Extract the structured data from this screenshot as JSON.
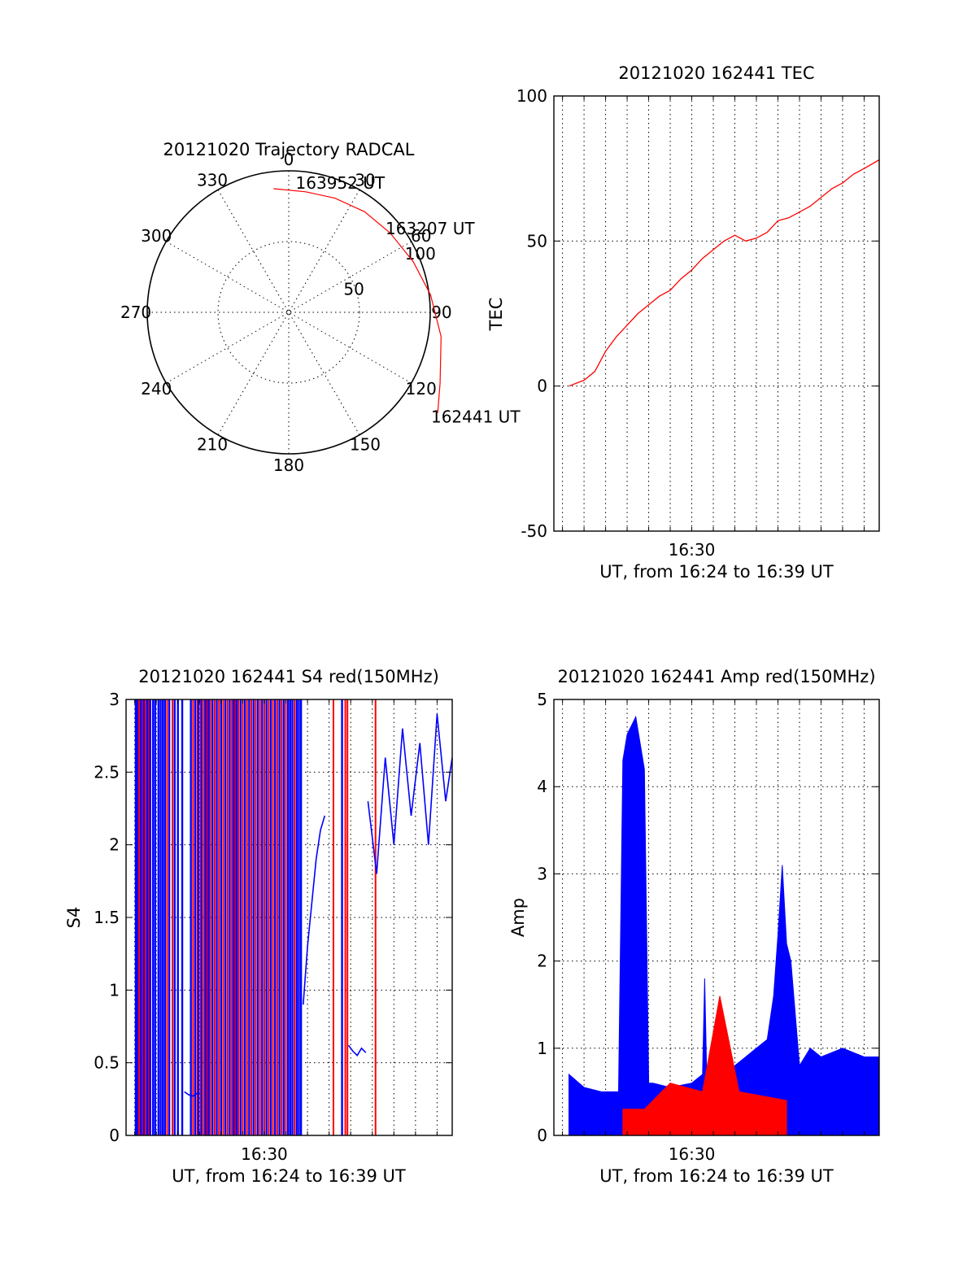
{
  "colors": {
    "red": "#ff0000",
    "blue": "#0000ff",
    "axis": "#000000",
    "background": "#ffffff"
  },
  "chart_data": [
    {
      "type": "polar",
      "title": "20121020 Trajectory RADCAL",
      "angle_labels": [
        "0",
        "30",
        "60",
        "90",
        "120",
        "150",
        "180",
        "210",
        "240",
        "270",
        "300",
        "330"
      ],
      "radial_ticks": [
        50,
        100
      ],
      "radial_range": [
        0,
        100
      ],
      "grid": true,
      "trajectory": {
        "color": "red",
        "points": [
          {
            "azimuth": 353,
            "zenith": 88
          },
          {
            "azimuth": 8,
            "zenith": 86
          },
          {
            "azimuth": 22,
            "zenith": 87
          },
          {
            "azimuth": 37,
            "zenith": 89
          },
          {
            "azimuth": 52,
            "zenith": 91
          },
          {
            "azimuth": 68,
            "zenith": 95
          },
          {
            "azimuth": 83,
            "zenith": 101
          },
          {
            "azimuth": 99,
            "zenith": 109
          },
          {
            "azimuth": 115,
            "zenith": 118
          },
          {
            "azimuth": 124,
            "zenith": 127
          }
        ]
      },
      "time_labels": [
        {
          "text": "163952 UT",
          "azimuth": 8,
          "zenith": 93
        },
        {
          "text": "163207 UT",
          "azimuth": 52,
          "zenith": 97
        },
        {
          "text": "162441 UT",
          "azimuth": 124,
          "zenith": 131
        }
      ]
    },
    {
      "type": "line",
      "title": "20121020 162441 TEC",
      "xlabel": "UT, from 16:24 to 16:39 UT",
      "ylabel": "TEC",
      "xrange_minutes": [
        23.6,
        38.7
      ],
      "ylim": [
        -50,
        100
      ],
      "yticks": [
        -50,
        0,
        50,
        100
      ],
      "xticks": [
        {
          "value": 30,
          "label": "16:30"
        }
      ],
      "grid": true,
      "series": [
        {
          "color": "red",
          "x": [
            24.3,
            25.0,
            25.5,
            26.0,
            26.5,
            27.0,
            27.5,
            28.0,
            28.5,
            29.0,
            29.5,
            30.0,
            30.5,
            31.0,
            31.5,
            32.0,
            32.5,
            33.0,
            33.5,
            34.0,
            34.5,
            35.0,
            35.5,
            36.0,
            36.5,
            37.0,
            37.5,
            38.0,
            38.7
          ],
          "y": [
            0,
            2,
            5,
            12,
            17,
            21,
            25,
            28,
            31,
            33,
            37,
            40,
            44,
            47,
            50,
            52,
            50,
            51,
            53,
            57,
            58,
            60,
            62,
            65,
            68,
            70,
            73,
            75,
            78
          ]
        }
      ]
    },
    {
      "type": "line",
      "title": "20121020 162441 S4 red(150MHz)",
      "xlabel": "UT, from 16:24 to 16:39 UT",
      "ylabel": "S4",
      "xrange_minutes": [
        23.6,
        38.7
      ],
      "ylim": [
        0,
        3
      ],
      "yticks": [
        0,
        0.5,
        1,
        1.5,
        2,
        2.5,
        3
      ],
      "xticks": [
        {
          "value": 30,
          "label": "16:30"
        }
      ],
      "grid": true,
      "red_spikes": [
        24.2,
        24.35,
        24.5,
        24.65,
        25.5,
        25.75,
        26.7,
        26.9,
        27.05,
        27.2,
        27.35,
        27.5,
        27.7,
        27.9,
        28.1,
        28.3,
        28.5,
        28.65,
        28.8,
        29.0,
        29.2,
        29.4,
        29.6,
        29.8,
        30.0,
        30.2,
        30.4,
        30.6,
        30.8,
        31.0,
        31.4,
        33.2,
        33.75,
        33.85,
        35.15
      ],
      "blue_spikes": [
        24.05,
        24.12,
        24.28,
        24.42,
        24.58,
        24.72,
        24.85,
        24.95,
        25.1,
        25.2,
        25.3,
        25.4,
        25.6,
        25.85,
        26.0,
        26.2,
        26.6,
        26.8,
        26.95,
        27.1,
        27.28,
        27.42,
        27.6,
        27.8,
        28.0,
        28.2,
        28.4,
        28.58,
        28.72,
        28.9,
        29.1,
        29.3,
        29.5,
        29.7,
        29.9,
        30.1,
        30.3,
        30.5,
        30.7,
        30.9,
        31.1,
        31.2,
        31.3,
        31.5,
        31.6,
        31.7,
        33.6
      ],
      "series": [
        {
          "name": "",
          "color": "blue",
          "x": [
            26.3,
            26.5,
            26.7,
            26.9,
            27.0
          ],
          "y": [
            0.3,
            0.28,
            0.27,
            0.29,
            0.3
          ]
        },
        {
          "name": "",
          "color": "blue",
          "x": [
            33.9,
            34.1,
            34.3,
            34.5,
            34.7
          ],
          "y": [
            0.62,
            0.58,
            0.55,
            0.6,
            0.57
          ]
        },
        {
          "name": "",
          "color": "blue",
          "x": [
            31.8,
            32.0,
            32.2,
            32.4,
            32.6,
            32.8
          ],
          "y": [
            0.9,
            1.3,
            1.6,
            1.9,
            2.1,
            2.2
          ]
        },
        {
          "name": "",
          "color": "blue",
          "x": [
            34.8,
            35.2,
            35.6,
            36.0,
            36.4,
            36.8,
            37.2,
            37.6,
            38.0,
            38.4,
            38.7
          ],
          "y": [
            2.3,
            1.8,
            2.6,
            2.0,
            2.8,
            2.2,
            2.7,
            2.0,
            2.9,
            2.3,
            2.6
          ]
        }
      ]
    },
    {
      "type": "line",
      "title": "20121020 162441 Amp red(150MHz)",
      "xlabel": "UT, from 16:24 to 16:39 UT",
      "ylabel": "Amp",
      "xrange_minutes": [
        23.6,
        38.7
      ],
      "ylim": [
        0,
        5
      ],
      "yticks": [
        0,
        1,
        2,
        3,
        4,
        5
      ],
      "xticks": [
        {
          "value": 30,
          "label": "16:30"
        }
      ],
      "grid": true,
      "series": [
        {
          "name": "",
          "color": "blue",
          "x": [
            24.3,
            25.0,
            25.8,
            26.6,
            26.8,
            27.0,
            27.4,
            27.8,
            28.0,
            28.2,
            29.0,
            30.0,
            30.5,
            30.6,
            30.7,
            31.5,
            32.0,
            32.5,
            33.0,
            33.5,
            33.8,
            34.0,
            34.2,
            34.4,
            34.6,
            35.0,
            35.5,
            36.0,
            37.0,
            38.0,
            38.7
          ],
          "y": [
            0.7,
            0.55,
            0.5,
            0.5,
            4.3,
            4.6,
            4.8,
            4.2,
            0.6,
            0.6,
            0.55,
            0.6,
            0.7,
            1.8,
            0.6,
            0.6,
            0.8,
            0.9,
            1.0,
            1.1,
            1.6,
            2.3,
            3.1,
            2.2,
            2.0,
            0.8,
            1.0,
            0.9,
            1.0,
            0.9,
            0.9
          ]
        },
        {
          "name": "",
          "color": "red",
          "x": [
            26.8,
            27.8,
            29.0,
            30.5,
            31.3,
            32.2,
            34.4
          ],
          "y": [
            0.3,
            0.3,
            0.6,
            0.5,
            1.6,
            0.5,
            0.4
          ]
        }
      ]
    }
  ]
}
